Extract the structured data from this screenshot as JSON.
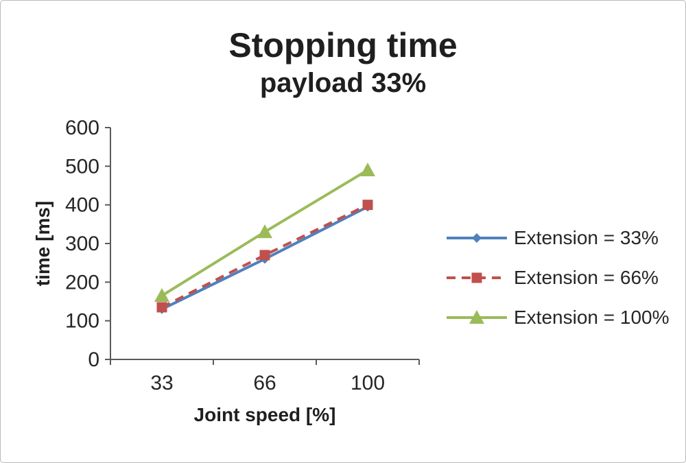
{
  "chart_data": {
    "type": "line",
    "title": "Stopping time",
    "subtitle": "payload 33%",
    "xlabel": "Joint speed [%]",
    "ylabel": "time [ms]",
    "categories": [
      "33",
      "66",
      "100"
    ],
    "ylim": [
      0,
      600
    ],
    "ytick_step": 100,
    "grid": false,
    "legend_position": "right",
    "axis_color": "#595959",
    "text_color": "#262626",
    "series": [
      {
        "name": "Extension = 33%",
        "values": [
          130,
          260,
          395
        ],
        "color": "#4F81BD",
        "marker": "diamond",
        "line_style": "solid"
      },
      {
        "name": "Extension = 66%",
        "values": [
          135,
          270,
          400
        ],
        "color": "#C0504D",
        "marker": "square",
        "line_style": "dashed"
      },
      {
        "name": "Extension = 100%",
        "values": [
          165,
          330,
          490
        ],
        "color": "#9BBB59",
        "marker": "triangle",
        "line_style": "solid"
      }
    ]
  }
}
